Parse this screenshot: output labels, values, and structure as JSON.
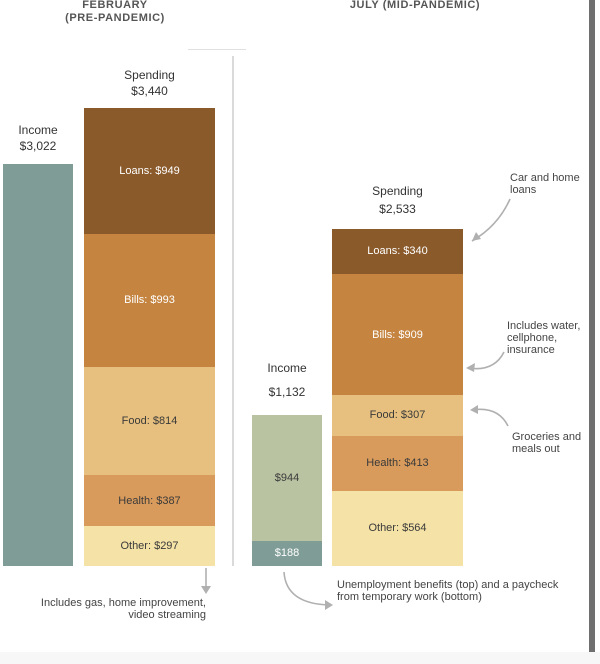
{
  "headings": {
    "february_line1": "FEBRUARY",
    "february_line2": "(PRE-PANDEMIC)",
    "july": "JULY (MID-PANDEMIC)"
  },
  "chart_data": {
    "type": "bar",
    "stacked": true,
    "unit": "$",
    "panels": [
      {
        "name": "FEBRUARY (PRE-PANDEMIC)",
        "income": {
          "label": "Income",
          "total_label": "$3,022",
          "total": 3022,
          "segments": [
            {
              "name": "Income",
              "value": 3022,
              "label": "",
              "color": "#7f9d96"
            }
          ]
        },
        "spending": {
          "label": "Spending",
          "total_label": "$3,440",
          "total": 3440,
          "segments": [
            {
              "name": "Loans",
              "value": 949,
              "label": "Loans: $949",
              "color": "#8a5a2b"
            },
            {
              "name": "Bills",
              "value": 993,
              "label": "Bills: $993",
              "color": "#c58541"
            },
            {
              "name": "Food",
              "value": 814,
              "label": "Food: $814",
              "color": "#e7c07f"
            },
            {
              "name": "Health",
              "value": 387,
              "label": "Health: $387",
              "color": "#d99b5c"
            },
            {
              "name": "Other",
              "value": 297,
              "label": "Other: $297",
              "color": "#f4e2a6"
            }
          ]
        }
      },
      {
        "name": "JULY (MID-PANDEMIC)",
        "income": {
          "label": "Income",
          "total_label": "$1,132",
          "total": 1132,
          "segments": [
            {
              "name": "Unemployment benefits",
              "value": 944,
              "label": "$944",
              "color": "#b9c3a2"
            },
            {
              "name": "Paycheck from temporary work",
              "value": 188,
              "label": "$188",
              "color": "#7f9d96"
            }
          ]
        },
        "spending": {
          "label": "Spending",
          "total_label": "$2,533",
          "total": 2533,
          "segments": [
            {
              "name": "Loans",
              "value": 340,
              "label": "Loans: $340",
              "color": "#8a5a2b"
            },
            {
              "name": "Bills",
              "value": 909,
              "label": "Bills: $909",
              "color": "#c58541"
            },
            {
              "name": "Food",
              "value": 307,
              "label": "Food: $307",
              "color": "#e7c07f"
            },
            {
              "name": "Health",
              "value": 413,
              "label": "Health: $413",
              "color": "#d99b5c"
            },
            {
              "name": "Other",
              "value": 564,
              "label": "Other: $564",
              "color": "#f4e2a6"
            }
          ]
        }
      }
    ]
  },
  "annotations": {
    "car_loans": [
      "Car and home",
      "loans"
    ],
    "bills": [
      "Includes water,",
      "cellphone,",
      "insurance"
    ],
    "groceries": [
      "Groceries and",
      "meals out"
    ],
    "other": [
      "Includes gas, home improvement,",
      "video streaming"
    ],
    "income": [
      "Unemployment benefits (top) and a paycheck",
      "from temporary work (bottom)"
    ]
  },
  "colors": {
    "arrow": "#b0b0b0",
    "light_text": "#ffffff",
    "dark_text": "#3a3a3a"
  }
}
